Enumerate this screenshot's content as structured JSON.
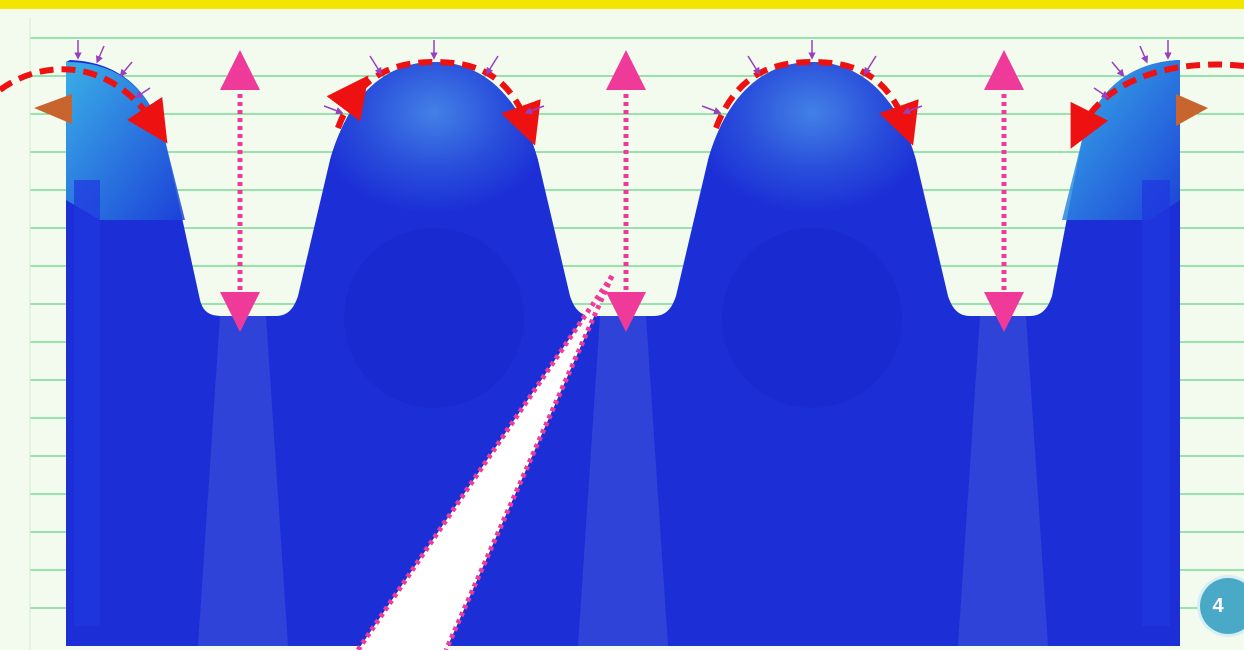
{
  "slide": {
    "page_number": "4"
  },
  "colors": {
    "background": "#f2fbee",
    "top_bar": "#f2e600",
    "ruled_lines": "#3dc96c",
    "gear_body": "#1c2fd6",
    "gear_highlight": "#33a0e8",
    "dotted_arrows": "#f03a9a",
    "dashed_arcs": "#ee1111",
    "force_arrows": "#9a3fc0",
    "page_badge": "#4aa9c6"
  },
  "figure": {
    "subject": "rack-teeth-stress-contour",
    "tooth_count_full": 2,
    "tooth_count_partial": 2
  }
}
